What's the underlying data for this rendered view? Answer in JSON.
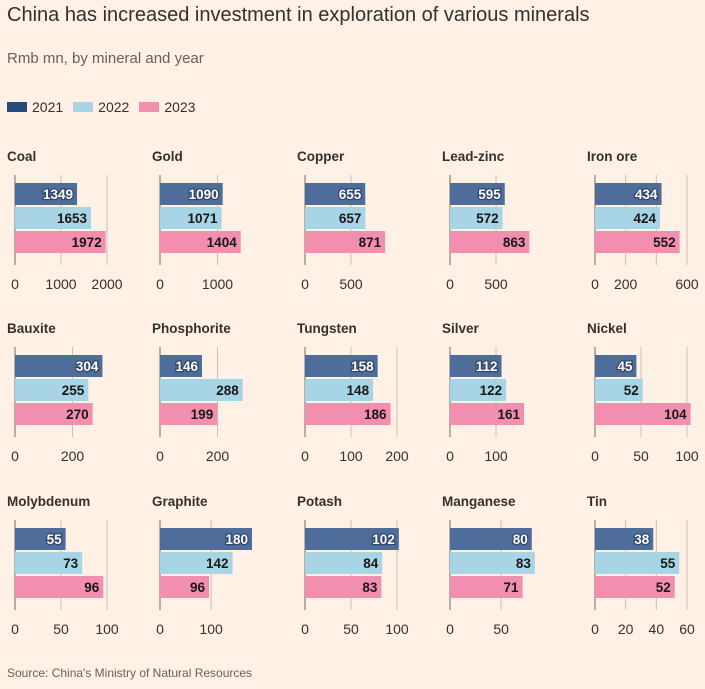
{
  "title": "China has increased investment in exploration of various minerals",
  "subtitle": "Rmb mn, by mineral and year",
  "source": "Source: China's Ministry of Natural Resources",
  "colors": {
    "2021": "#4e6d9a",
    "2022": "#a8d5e6",
    "2023": "#f28fb1",
    "background": "#fff1e5",
    "grid": "#c9bdb3"
  },
  "chart_data": {
    "type": "bar",
    "orientation": "horizontal",
    "legend": [
      {
        "name": "2021",
        "color": "#4e6d9a"
      },
      {
        "name": "2022",
        "color": "#a8d5e6"
      },
      {
        "name": "2023",
        "color": "#f28fb1"
      }
    ],
    "series_names": [
      "2021",
      "2022",
      "2023"
    ],
    "panels": [
      {
        "name": "Coal",
        "values": [
          1349,
          1653,
          1972
        ],
        "ticks": [
          0,
          1000,
          2000
        ],
        "xlim": [
          0,
          2000
        ]
      },
      {
        "name": "Gold",
        "values": [
          1090,
          1071,
          1404
        ],
        "ticks": [
          0,
          1000
        ],
        "xlim": [
          0,
          1600
        ]
      },
      {
        "name": "Copper",
        "values": [
          655,
          657,
          871
        ],
        "ticks": [
          0,
          500
        ],
        "xlim": [
          0,
          1000
        ]
      },
      {
        "name": "Lead-zinc",
        "values": [
          595,
          572,
          863
        ],
        "ticks": [
          0,
          500
        ],
        "xlim": [
          0,
          1000
        ]
      },
      {
        "name": "Iron ore",
        "values": [
          434,
          424,
          552
        ],
        "ticks": [
          0,
          200,
          400,
          600
        ],
        "tick_labels": [
          "0",
          "200",
          "",
          "600"
        ],
        "xlim": [
          0,
          600
        ]
      },
      {
        "name": "Bauxite",
        "values": [
          304,
          255,
          270
        ],
        "ticks": [
          0,
          200
        ],
        "xlim": [
          0,
          320
        ]
      },
      {
        "name": "Phosphorite",
        "values": [
          146,
          288,
          199
        ],
        "ticks": [
          0,
          200
        ],
        "xlim": [
          0,
          320
        ]
      },
      {
        "name": "Tungsten",
        "values": [
          158,
          148,
          186
        ],
        "ticks": [
          0,
          100,
          200
        ],
        "xlim": [
          0,
          200
        ]
      },
      {
        "name": "Silver",
        "values": [
          112,
          122,
          161
        ],
        "ticks": [
          0,
          100
        ],
        "xlim": [
          0,
          200
        ]
      },
      {
        "name": "Nickel",
        "values": [
          45,
          52,
          104
        ],
        "ticks": [
          0,
          50,
          100
        ],
        "xlim": [
          0,
          100
        ]
      },
      {
        "name": "Molybdenum",
        "values": [
          55,
          73,
          96
        ],
        "ticks": [
          0,
          50,
          100
        ],
        "xlim": [
          0,
          100
        ]
      },
      {
        "name": "Graphite",
        "values": [
          180,
          142,
          96
        ],
        "ticks": [
          0,
          100
        ],
        "xlim": [
          0,
          180
        ]
      },
      {
        "name": "Potash",
        "values": [
          102,
          84,
          83
        ],
        "ticks": [
          0,
          50,
          100
        ],
        "xlim": [
          0,
          100
        ]
      },
      {
        "name": "Manganese",
        "values": [
          80,
          83,
          71
        ],
        "ticks": [
          0,
          50
        ],
        "xlim": [
          0,
          90
        ]
      },
      {
        "name": "Tin",
        "values": [
          38,
          55,
          52
        ],
        "ticks": [
          0,
          20,
          40,
          60
        ],
        "xlim": [
          0,
          60
        ]
      }
    ]
  }
}
